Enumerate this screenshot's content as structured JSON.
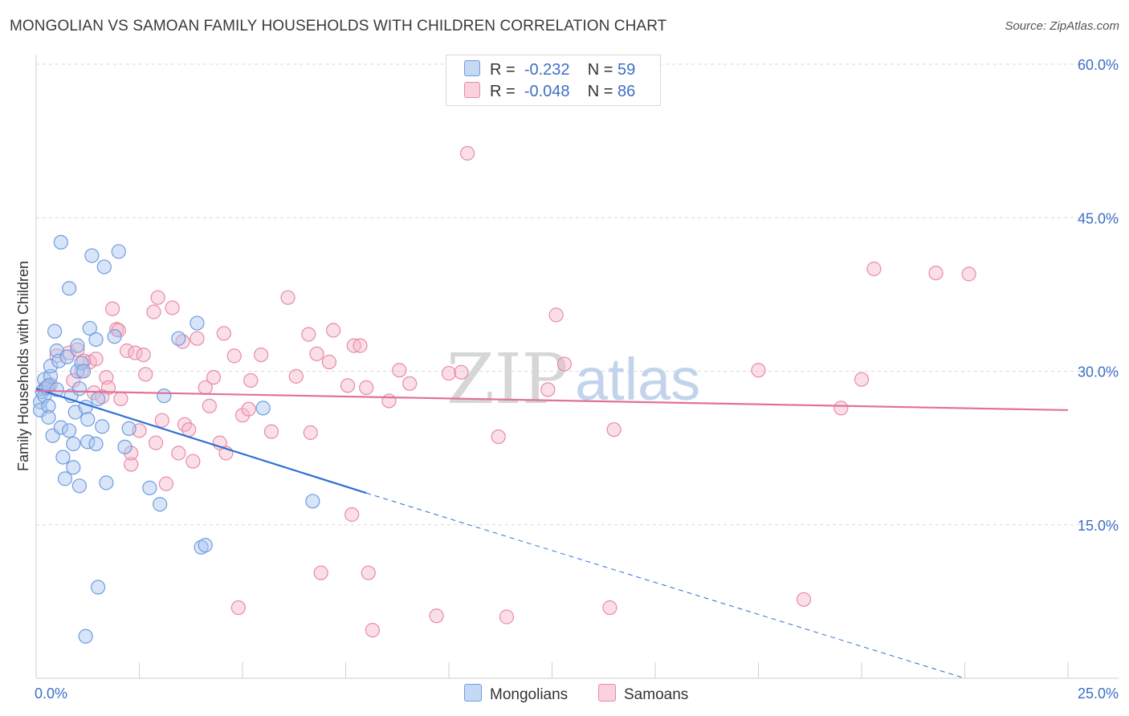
{
  "title": "MONGOLIAN VS SAMOAN FAMILY HOUSEHOLDS WITH CHILDREN CORRELATION CHART",
  "source": "Source: ZipAtlas.com",
  "watermark": {
    "zip": "ZIP",
    "atlas": "atlas"
  },
  "colors": {
    "blue_fill": "#a9c6f0",
    "blue_stroke": "#6f9ce0",
    "blue_line": "#2c6fd6",
    "pink_fill": "#f5b9ca",
    "pink_stroke": "#e98aa6",
    "pink_line": "#e0719a",
    "axis_label": "#3c6fc6",
    "grid": "#d9d9d9"
  },
  "legend_top": [
    {
      "r_label": "R =",
      "r_value": "-0.232",
      "n_label": "N =",
      "n_value": "59",
      "color": "#a9c6f0"
    },
    {
      "r_label": "R =",
      "r_value": "-0.048",
      "n_label": "N =",
      "n_value": "86",
      "color": "#f5b9ca"
    }
  ],
  "legend_bottom": [
    {
      "label": "Mongolians",
      "color": "#a9c6f0"
    },
    {
      "label": "Samoans",
      "color": "#f5b9ca"
    }
  ],
  "chart_data": {
    "type": "scatter",
    "title": "MONGOLIAN VS SAMOAN FAMILY HOUSEHOLDS WITH CHILDREN CORRELATION CHART",
    "xlabel": "",
    "ylabel": "Family Households with Children",
    "xlim": [
      0,
      25
    ],
    "ylim": [
      0,
      60
    ],
    "x_tick_labels": [
      {
        "value": 0,
        "label": "0.0%"
      },
      {
        "value": 25,
        "label": "25.0%"
      }
    ],
    "y_tick_labels": [
      {
        "value": 15,
        "label": "15.0%"
      },
      {
        "value": 30,
        "label": "30.0%"
      },
      {
        "value": 45,
        "label": "45.0%"
      },
      {
        "value": 60,
        "label": "60.0%"
      }
    ],
    "grid": true,
    "series": [
      {
        "name": "Mongolians",
        "color": "#a9c6f0",
        "trend": {
          "x0": 0,
          "y0": 28.3,
          "x1": 8.0,
          "y1": 18.1,
          "dashed_to_x": 22.5,
          "dashed_to_y": 0
        },
        "points": [
          [
            0.1,
            27.0
          ],
          [
            0.1,
            26.2
          ],
          [
            0.15,
            28.0
          ],
          [
            0.2,
            29.2
          ],
          [
            0.2,
            27.6
          ],
          [
            0.25,
            28.4
          ],
          [
            0.3,
            26.6
          ],
          [
            0.3,
            25.5
          ],
          [
            0.35,
            29.5
          ],
          [
            0.35,
            30.5
          ],
          [
            0.4,
            23.7
          ],
          [
            0.45,
            33.9
          ],
          [
            0.5,
            32.0
          ],
          [
            0.55,
            31.0
          ],
          [
            0.6,
            42.6
          ],
          [
            0.6,
            24.5
          ],
          [
            0.65,
            21.6
          ],
          [
            0.7,
            19.5
          ],
          [
            0.75,
            31.4
          ],
          [
            0.8,
            38.1
          ],
          [
            0.8,
            24.2
          ],
          [
            0.85,
            27.6
          ],
          [
            0.9,
            22.9
          ],
          [
            0.9,
            20.6
          ],
          [
            0.95,
            26.0
          ],
          [
            1.0,
            30.0
          ],
          [
            1.0,
            32.5
          ],
          [
            1.05,
            28.3
          ],
          [
            1.05,
            18.8
          ],
          [
            1.1,
            30.8
          ],
          [
            1.15,
            30.0
          ],
          [
            1.2,
            26.5
          ],
          [
            1.25,
            23.1
          ],
          [
            1.25,
            25.3
          ],
          [
            1.3,
            34.2
          ],
          [
            1.35,
            41.3
          ],
          [
            1.45,
            22.9
          ],
          [
            1.45,
            33.1
          ],
          [
            1.5,
            27.3
          ],
          [
            1.6,
            24.6
          ],
          [
            1.65,
            40.2
          ],
          [
            1.7,
            19.1
          ],
          [
            1.9,
            33.4
          ],
          [
            2.0,
            41.7
          ],
          [
            2.15,
            22.6
          ],
          [
            2.25,
            24.4
          ],
          [
            2.75,
            18.6
          ],
          [
            3.0,
            17.0
          ],
          [
            3.1,
            27.6
          ],
          [
            3.45,
            33.2
          ],
          [
            3.9,
            34.7
          ],
          [
            4.0,
            12.8
          ],
          [
            4.1,
            13.0
          ],
          [
            5.5,
            26.4
          ],
          [
            6.7,
            17.3
          ],
          [
            1.5,
            8.9
          ],
          [
            1.2,
            4.1
          ],
          [
            0.3,
            28.6
          ],
          [
            0.5,
            28.2
          ]
        ]
      },
      {
        "name": "Samoans",
        "color": "#f5b9ca",
        "trend": {
          "x0": 0,
          "y0": 28.1,
          "x1": 25,
          "y1": 26.2
        },
        "points": [
          [
            0.2,
            28.3
          ],
          [
            0.35,
            28.7
          ],
          [
            0.5,
            31.5
          ],
          [
            0.8,
            31.8
          ],
          [
            0.9,
            29.1
          ],
          [
            1.0,
            32.1
          ],
          [
            1.1,
            30.0
          ],
          [
            1.3,
            30.9
          ],
          [
            1.4,
            27.9
          ],
          [
            1.45,
            31.2
          ],
          [
            1.7,
            29.4
          ],
          [
            1.75,
            28.4
          ],
          [
            1.85,
            36.1
          ],
          [
            1.95,
            34.1
          ],
          [
            2.05,
            27.3
          ],
          [
            2.2,
            32.0
          ],
          [
            2.3,
            20.9
          ],
          [
            2.4,
            31.8
          ],
          [
            2.5,
            24.2
          ],
          [
            2.65,
            29.7
          ],
          [
            2.85,
            35.8
          ],
          [
            2.95,
            37.2
          ],
          [
            3.05,
            25.2
          ],
          [
            3.15,
            19.0
          ],
          [
            3.3,
            36.2
          ],
          [
            3.45,
            22.0
          ],
          [
            3.55,
            32.9
          ],
          [
            3.6,
            24.8
          ],
          [
            3.7,
            24.3
          ],
          [
            3.8,
            21.2
          ],
          [
            3.9,
            33.2
          ],
          [
            4.1,
            28.4
          ],
          [
            4.2,
            26.6
          ],
          [
            4.3,
            29.4
          ],
          [
            4.45,
            23.0
          ],
          [
            4.55,
            33.7
          ],
          [
            4.6,
            22.0
          ],
          [
            4.8,
            31.5
          ],
          [
            5.0,
            25.7
          ],
          [
            5.15,
            26.3
          ],
          [
            5.2,
            29.1
          ],
          [
            5.45,
            31.6
          ],
          [
            5.7,
            24.1
          ],
          [
            6.1,
            37.2
          ],
          [
            6.3,
            29.5
          ],
          [
            6.6,
            33.6
          ],
          [
            6.65,
            24.0
          ],
          [
            6.8,
            31.7
          ],
          [
            7.1,
            30.9
          ],
          [
            7.2,
            34.0
          ],
          [
            7.55,
            28.6
          ],
          [
            7.65,
            16.0
          ],
          [
            7.7,
            32.5
          ],
          [
            7.85,
            32.5
          ],
          [
            8.0,
            28.4
          ],
          [
            8.05,
            10.3
          ],
          [
            8.15,
            4.7
          ],
          [
            8.55,
            27.1
          ],
          [
            8.8,
            30.1
          ],
          [
            9.05,
            28.8
          ],
          [
            9.7,
            6.1
          ],
          [
            10.0,
            29.8
          ],
          [
            10.3,
            29.9
          ],
          [
            10.45,
            51.3
          ],
          [
            11.2,
            23.6
          ],
          [
            11.4,
            6.0
          ],
          [
            12.4,
            28.2
          ],
          [
            12.6,
            35.5
          ],
          [
            12.8,
            30.7
          ],
          [
            13.9,
            6.9
          ],
          [
            14.0,
            24.3
          ],
          [
            17.5,
            30.1
          ],
          [
            18.6,
            7.7
          ],
          [
            19.5,
            26.4
          ],
          [
            20.0,
            29.2
          ],
          [
            20.3,
            40.0
          ],
          [
            21.8,
            39.6
          ],
          [
            22.6,
            39.5
          ],
          [
            2.6,
            31.6
          ],
          [
            2.0,
            34.0
          ],
          [
            2.3,
            22.0
          ],
          [
            2.9,
            23.0
          ],
          [
            6.9,
            10.3
          ],
          [
            4.9,
            6.9
          ],
          [
            1.6,
            27.5
          ],
          [
            1.15,
            31.0
          ]
        ]
      }
    ]
  }
}
